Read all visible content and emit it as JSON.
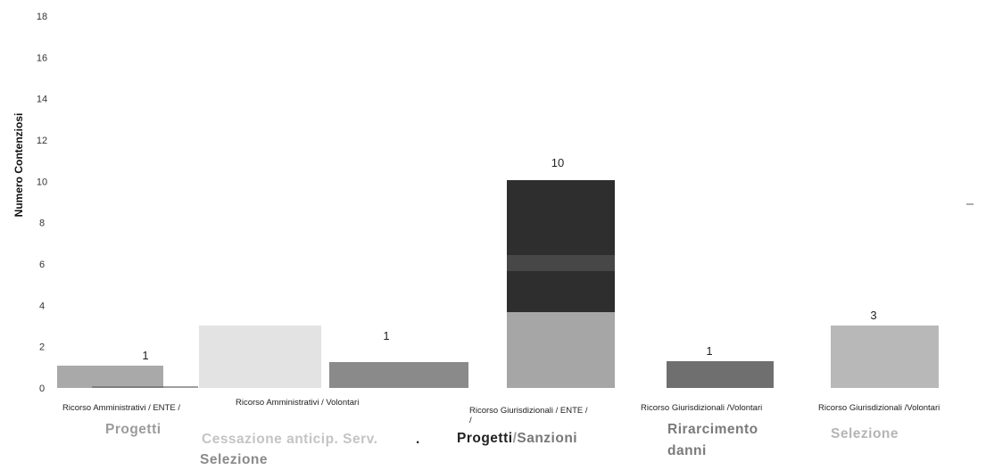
{
  "chart_data": {
    "type": "bar",
    "ylabel": "Numero Contenziosi",
    "ylim": [
      0,
      18
    ],
    "yticks": [
      0,
      2,
      4,
      6,
      8,
      10,
      12,
      14,
      16,
      18
    ],
    "grid": false,
    "bars": [
      {
        "category": "Ricorso Amministrativi / ENTE /",
        "segments": [
          {
            "label": "Progetti",
            "value": 1,
            "color": "#a9a9a9"
          },
          {
            "label": "Cessazione anticip. Serv. Selezione",
            "value": 3,
            "color": "#e3e3e3"
          }
        ]
      },
      {
        "category": "Ricorso Amministrativi / Volontari",
        "segments": [
          {
            "label": "",
            "value": 1,
            "color": "#8a8a8a"
          }
        ]
      },
      {
        "category": "Ricorso Giurisdizionali / ENTE /",
        "total": 10,
        "segments": [
          {
            "label": "Progetti",
            "value": 3.7,
            "color": "#a6a6a6"
          },
          {
            "label": "Sanzioni",
            "value": 6.3,
            "color": "#2e2e2e"
          }
        ]
      },
      {
        "category": "Ricorso Giurisdizionali /Volontari",
        "segments": [
          {
            "label": "Rirarcimento danni",
            "value": 1,
            "color": "#6f6f6f"
          }
        ]
      },
      {
        "category": "Ricorso Giurisdizionali /Volontari",
        "segments": [
          {
            "label": "Selezione",
            "value": 3,
            "color": "#b8b8b8"
          }
        ]
      }
    ],
    "value_labels": [
      "1",
      "1",
      "10",
      "1",
      "3"
    ]
  }
}
